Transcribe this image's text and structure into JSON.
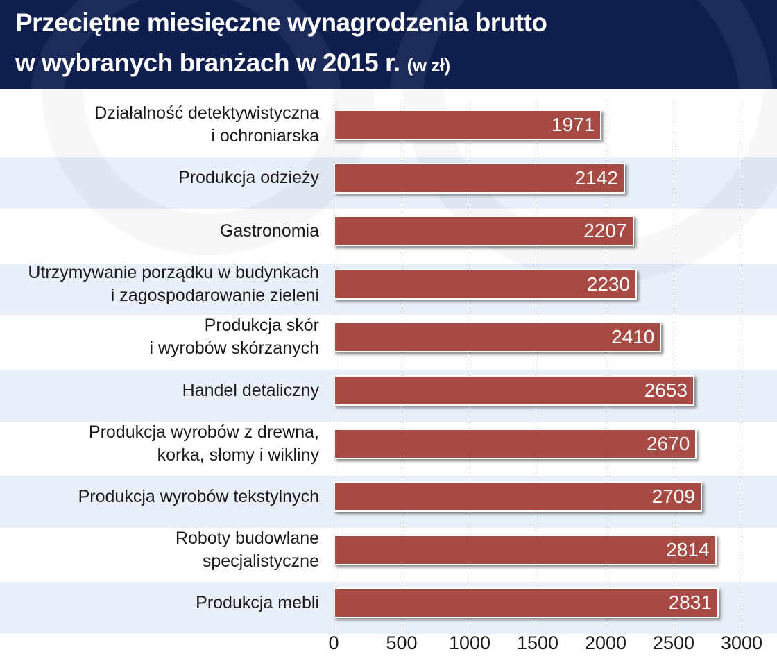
{
  "header": {
    "title_line1": "Przeciętne miesięczne wynagrodzenia brutto",
    "title_line2": "w wybranych branżach w 2015 r.",
    "unit": "(w zł)"
  },
  "colors": {
    "header_bg": "#0e1e4f",
    "bar": "#a84a44",
    "band": "#e9eff8"
  },
  "chart_data": {
    "type": "bar",
    "orientation": "horizontal",
    "title": "Przeciętne miesięczne wynagrodzenia brutto w wybranych branżach w 2015 r. (w zł)",
    "categories": [
      [
        "Działalność detektywistyczna",
        "i ochroniarska"
      ],
      [
        "Produkcja odzieży"
      ],
      [
        "Gastronomia"
      ],
      [
        "Utrzymywanie porządku w budynkach",
        "i zagospodarowanie zieleni"
      ],
      [
        "Produkcja skór",
        "i wyrobów skórzanych"
      ],
      [
        "Handel detaliczny"
      ],
      [
        "Produkcja wyrobów z drewna,",
        "korka, słomy i wikliny"
      ],
      [
        "Produkcja wyrobów tekstylnych"
      ],
      [
        "Roboty budowlane",
        "specjalistyczne"
      ],
      [
        "Produkcja mebli"
      ]
    ],
    "values": [
      1971,
      2142,
      2207,
      2230,
      2410,
      2653,
      2670,
      2709,
      2814,
      2831
    ],
    "xlim": [
      0,
      3000
    ],
    "xticks": [
      0,
      500,
      1000,
      1500,
      2000,
      2500,
      3000
    ],
    "grid": true,
    "xlabel": "",
    "ylabel": ""
  }
}
